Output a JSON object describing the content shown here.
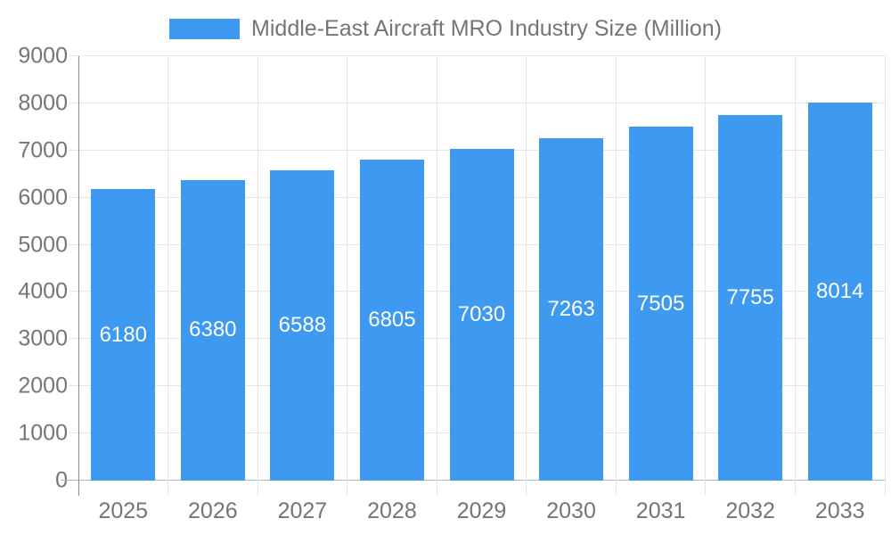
{
  "chart_data": {
    "type": "bar",
    "title": "Middle-East Aircraft MRO Industry Size (Million)",
    "legend": {
      "position": "top",
      "label": "Middle-East Aircraft MRO Industry Size (Million)"
    },
    "categories": [
      "2025",
      "2026",
      "2027",
      "2028",
      "2029",
      "2030",
      "2031",
      "2032",
      "2033"
    ],
    "series": [
      {
        "name": "Middle-East Aircraft MRO Industry Size (Million)",
        "values": [
          6180,
          6380,
          6588,
          6805,
          7030,
          7263,
          7505,
          7755,
          8014
        ]
      }
    ],
    "value_labels_shown": true,
    "xlabel": "",
    "ylabel": "",
    "ylim": [
      0,
      9000
    ],
    "ytick_step": 1000,
    "grid": true,
    "colors": {
      "bar": "#3D9AF0",
      "bar_value_text": "#ffffff",
      "axis_text": "#757575",
      "legend_text": "#757575",
      "gridline": "#e6e6e6",
      "baseline": "#b3b3b3",
      "axis_line": "#8c8c8c",
      "background": "#ffffff"
    }
  }
}
